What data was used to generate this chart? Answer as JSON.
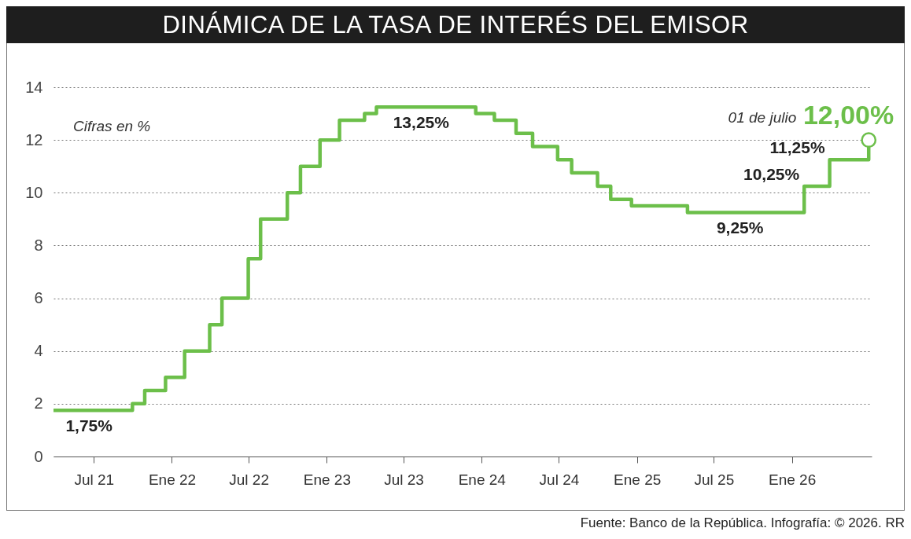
{
  "chart_data": {
    "type": "step",
    "title": "DINÁMICA DE LA TASA DE INTERÉS DEL EMISOR",
    "series": [
      {
        "color": "#6cbf4a",
        "x": [
          "2021-03-28",
          "2021-09-30",
          "2021-10-29",
          "2021-12-17",
          "2022-01-31",
          "2022-03-31",
          "2022-04-29",
          "2022-06-30",
          "2022-07-29",
          "2022-09-30",
          "2022-10-31",
          "2022-12-16",
          "2023-01-31",
          "2023-03-31",
          "2023-04-28",
          "2023-12-18",
          "2024-01-31",
          "2024-03-22",
          "2024-04-30",
          "2024-06-28",
          "2024-07-31",
          "2024-09-30",
          "2024-10-31",
          "2024-12-19",
          "2025-04-30",
          "2026-01-30",
          "2026-03-31",
          "2026-07-01"
        ],
        "values": [
          1.75,
          2.0,
          2.5,
          3.0,
          4.0,
          5.0,
          6.0,
          7.5,
          9.0,
          10.0,
          11.0,
          12.0,
          12.75,
          13.0,
          13.25,
          13.0,
          12.75,
          12.25,
          11.75,
          11.25,
          10.75,
          10.25,
          9.75,
          9.5,
          9.25,
          10.25,
          11.25,
          12.0
        ],
        "value_labels": [
          "1,75%",
          null,
          null,
          null,
          null,
          null,
          null,
          null,
          null,
          null,
          null,
          null,
          null,
          null,
          "13,25%",
          null,
          null,
          null,
          null,
          null,
          null,
          null,
          null,
          null,
          "9,25%",
          "10,25%",
          "11,25%",
          null
        ]
      },
      {
        "type": "scatter",
        "color": "#6cbf4a",
        "marker": "circle",
        "x": [
          "2026-07-01"
        ],
        "values": [
          12.0
        ],
        "value_labels": [
          "12,00%"
        ]
      }
    ],
    "xlim": [
      "2021-03-28",
      "2026-07-08"
    ],
    "xticks": [
      {
        "value": "2021-07-01",
        "label": "Jul 21"
      },
      {
        "value": "2022-01-01",
        "label": "Ene 22"
      },
      {
        "value": "2022-07-01",
        "label": "Jul 22"
      },
      {
        "value": "2023-01-01",
        "label": "Ene 23"
      },
      {
        "value": "2023-07-01",
        "label": "Jul 23"
      },
      {
        "value": "2024-01-01",
        "label": "Ene 24"
      },
      {
        "value": "2024-07-01",
        "label": "Jul 24"
      },
      {
        "value": "2025-01-01",
        "label": "Ene 25"
      },
      {
        "value": "2025-07-01",
        "label": "Jul 25"
      },
      {
        "value": "2026-01-01",
        "label": "Ene 26"
      }
    ],
    "ylim": [
      0,
      14
    ],
    "yticks": [
      0,
      2,
      4,
      6,
      8,
      10,
      12,
      14
    ],
    "grid": "y",
    "annotations": [
      "Cifras en %",
      "01 de julio",
      "Fuente: Banco de la República. Infografía: © 2026. RR"
    ]
  }
}
